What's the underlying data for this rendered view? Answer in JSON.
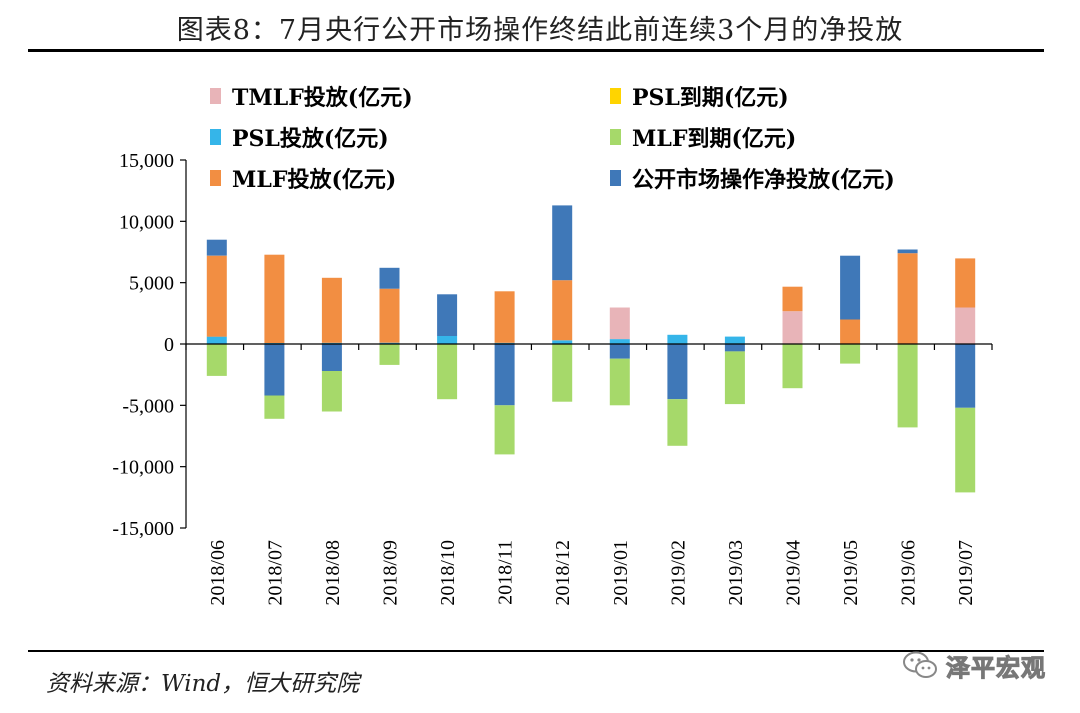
{
  "header": {
    "title": "图表8：7月央行公开市场操作终结此前连续3个月的净投放"
  },
  "footer": {
    "source": "资料来源：Wind，恒大研究院",
    "watermark": "泽平宏观"
  },
  "chart_data": {
    "type": "bar",
    "stacked": true,
    "title": "图表8：7月央行公开市场操作终结此前连续3个月的净投放",
    "xlabel": "",
    "ylabel": "",
    "ylim": [
      -15000,
      15000
    ],
    "yticks": [
      15000,
      10000,
      5000,
      0,
      -5000,
      -10000,
      -15000
    ],
    "ytick_labels": [
      "15,000",
      "10,000",
      "5,000",
      "0",
      "-5,000",
      "-10,000",
      "-15,000"
    ],
    "categories": [
      "2018/06",
      "2018/07",
      "2018/08",
      "2018/09",
      "2018/10",
      "2018/11",
      "2018/12",
      "2019/01",
      "2019/02",
      "2019/03",
      "2019/04",
      "2019/05",
      "2019/06",
      "2019/07"
    ],
    "series": [
      {
        "key": "tmlf",
        "name": "TMLF投放(亿元)",
        "color": "#e8b4b8",
        "values": [
          0,
          0,
          0,
          0,
          0,
          0,
          0,
          2575,
          0,
          0,
          2674,
          0,
          0,
          2977
        ]
      },
      {
        "key": "psl_exp",
        "name": "PSL到期(亿元)",
        "color": "#ffd400",
        "values": [
          0,
          0,
          0,
          0,
          0,
          0,
          0,
          0,
          0,
          0,
          0,
          0,
          0,
          0
        ]
      },
      {
        "key": "psl",
        "name": "PSL投放(亿元)",
        "color": "#35b5e9",
        "values": [
          600,
          80,
          100,
          110,
          650,
          100,
          300,
          400,
          750,
          600,
          0,
          0,
          0,
          0
        ]
      },
      {
        "key": "mlf_exp",
        "name": "MLF到期(亿元)",
        "color": "#a6d96a",
        "values": [
          -2600,
          -1900,
          -3300,
          -1700,
          -4500,
          -4000,
          -4700,
          -3800,
          -3800,
          -4300,
          -3600,
          -1600,
          -6800,
          -6900
        ]
      },
      {
        "key": "mlf",
        "name": "MLF投放(亿元)",
        "color": "#f28e42",
        "values": [
          6600,
          7200,
          5300,
          4400,
          0,
          4200,
          4900,
          0,
          0,
          0,
          2000,
          2000,
          7400,
          4000
        ]
      },
      {
        "key": "omo",
        "name": "公开市场操作净投放(亿元)",
        "color": "#3f78b8",
        "values": [
          1300,
          -4200,
          -2200,
          1700,
          3400,
          -5000,
          6100,
          -1200,
          -4500,
          -600,
          0,
          5200,
          300,
          -5200
        ]
      }
    ],
    "legend": {
      "placement": "top",
      "columns": 2
    }
  }
}
